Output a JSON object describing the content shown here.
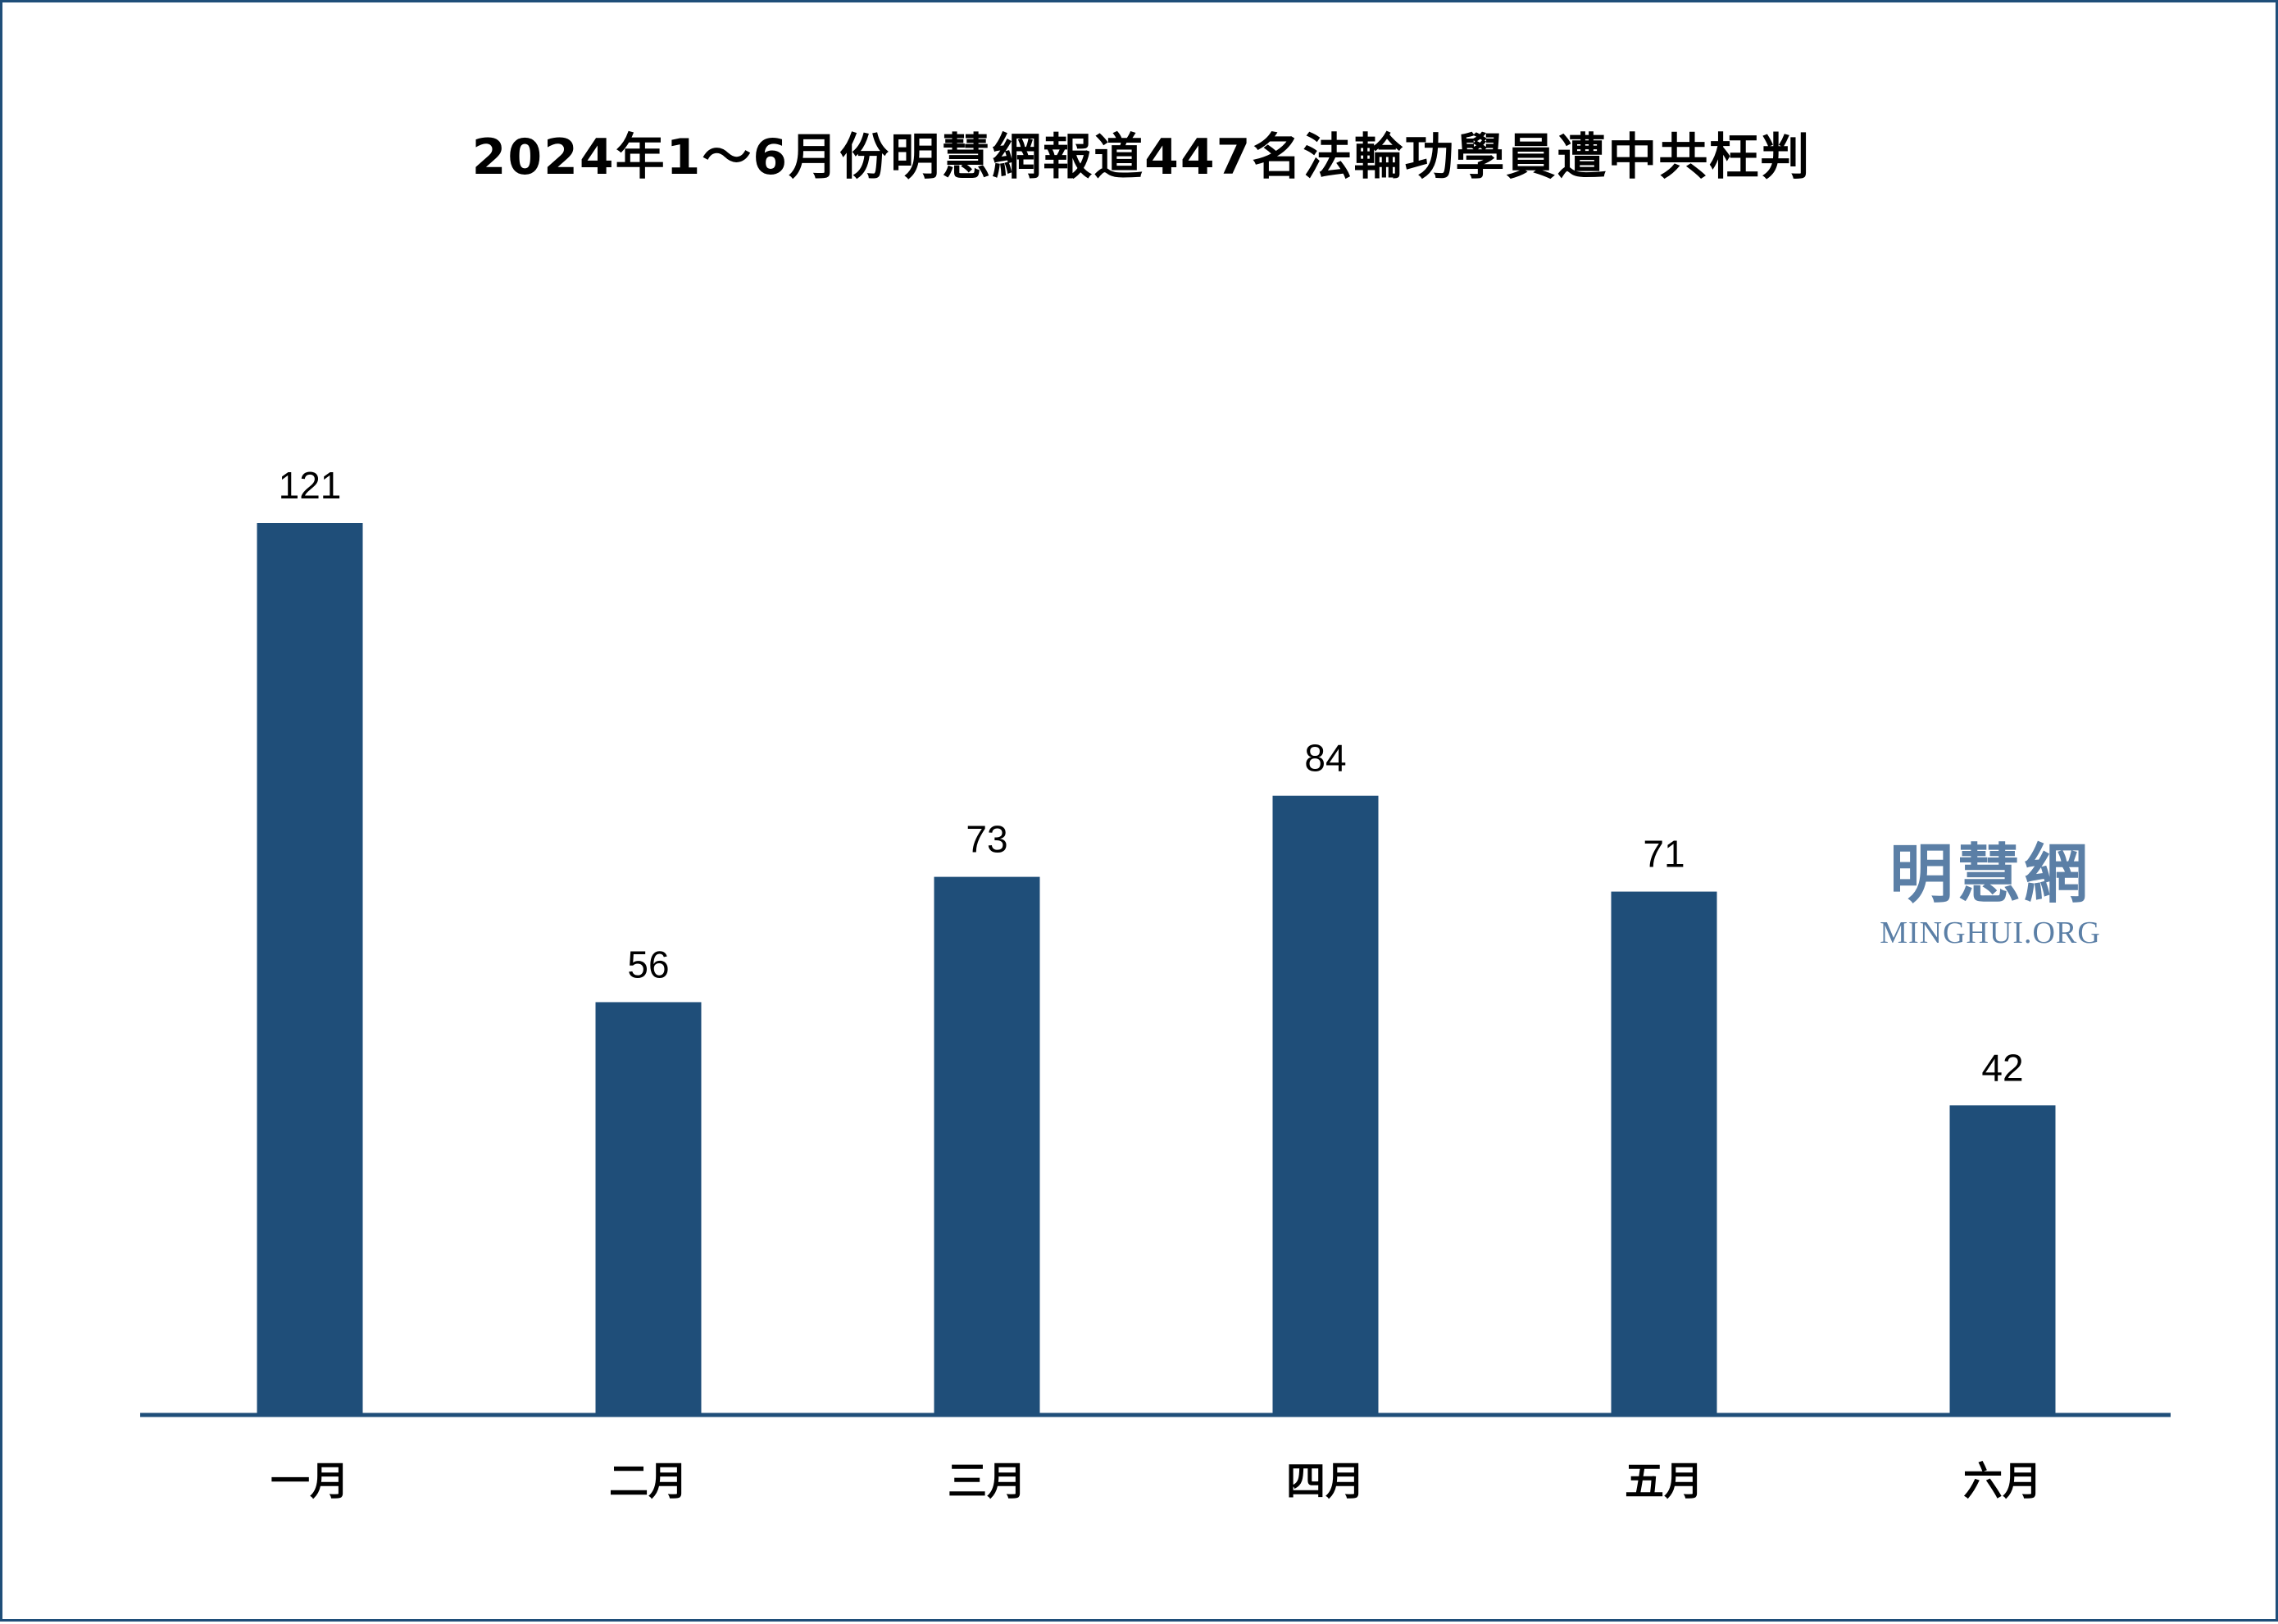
{
  "chart_data": {
    "type": "bar",
    "title": "2024年1～6月份明慧網報道447名法輪功學員遭中共枉判",
    "categories": [
      "一月",
      "二月",
      "三月",
      "四月",
      "五月",
      "六月"
    ],
    "values": [
      121,
      56,
      73,
      84,
      71,
      42
    ],
    "xlabel": "",
    "ylabel": "",
    "ylim": [
      0,
      121
    ],
    "grid": false,
    "legend": "none",
    "data_labels": true,
    "bar_color": "#1f4e79",
    "axis_color": "#1f4e79"
  },
  "watermark": {
    "cn": "明慧網",
    "en": "MINGHUI.ORG",
    "color": "#5b7fa6"
  }
}
